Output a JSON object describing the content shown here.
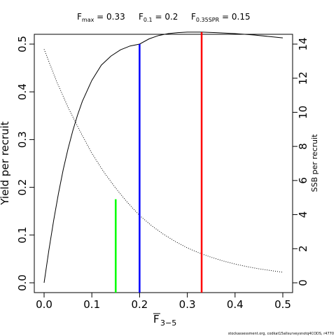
{
  "chart_data": {
    "type": "line",
    "x_label_main": "F",
    "x_label_sub": "3−5",
    "y_label_left": "Yield per recruit",
    "y_label_right": "SSB per recruit",
    "x_range": [
      0,
      0.5
    ],
    "y_left_range": [
      0,
      0.5
    ],
    "y_right_range": [
      0,
      14
    ],
    "x_ticks": [
      "0.0",
      "0.1",
      "0.2",
      "0.3",
      "0.4",
      "0.5"
    ],
    "y_left_ticks": [
      "0.0",
      "0.1",
      "0.2",
      "0.3",
      "0.4",
      "0.5"
    ],
    "y_right_ticks": [
      "0",
      "2",
      "4",
      "6",
      "8",
      "10",
      "12",
      "14"
    ],
    "reference_points": [
      {
        "main": "F",
        "sub": "max",
        "value_text": " = 0.33",
        "value": 0.33,
        "color": "#ff0000"
      },
      {
        "main": "F",
        "sub": "0.1",
        "value_text": " = 0.2",
        "value": 0.2,
        "color": "#0000ff"
      },
      {
        "main": "F",
        "sub": "0.35SPR",
        "value_text": " = 0.15",
        "value": 0.15,
        "color": "#00ff00"
      }
    ],
    "series": [
      {
        "style": "solid",
        "axis": "left",
        "x": [
          0,
          0.01,
          0.02,
          0.03,
          0.04,
          0.05,
          0.06,
          0.07,
          0.08,
          0.1,
          0.12,
          0.14,
          0.16,
          0.18,
          0.2,
          0.22,
          0.24,
          0.26,
          0.28,
          0.3,
          0.33,
          0.36,
          0.4,
          0.44,
          0.48,
          0.5
        ],
        "y": [
          0,
          0.068,
          0.13,
          0.187,
          0.237,
          0.28,
          0.318,
          0.351,
          0.38,
          0.424,
          0.456,
          0.475,
          0.488,
          0.496,
          0.5,
          0.511,
          0.518,
          0.522,
          0.524,
          0.525,
          0.525,
          0.524,
          0.522,
          0.519,
          0.515,
          0.513
        ]
      },
      {
        "style": "dotted",
        "axis": "right",
        "x": [
          0,
          0.025,
          0.05,
          0.075,
          0.1,
          0.125,
          0.15,
          0.175,
          0.2,
          0.225,
          0.25,
          0.275,
          0.3,
          0.325,
          0.35,
          0.375,
          0.4,
          0.425,
          0.45,
          0.475,
          0.5
        ],
        "y": [
          13.7,
          11.9,
          10.3,
          8.9,
          7.6,
          6.5,
          5.55,
          4.7,
          3.95,
          3.35,
          2.85,
          2.42,
          2.05,
          1.75,
          1.5,
          1.28,
          1.1,
          0.95,
          0.82,
          0.72,
          0.62
        ]
      }
    ],
    "vertical_lines": [
      {
        "x": 0.15,
        "y_top": 0.175,
        "color": "#00ff00"
      },
      {
        "x": 0.2,
        "y_top": 0.5,
        "color": "#0000ff"
      },
      {
        "x": 0.33,
        "y_top": 0.525,
        "color": "#ff0000"
      }
    ]
  },
  "footer_text": "stockassessment.org, codkat15allsurveysnotq4CODS, r4770"
}
